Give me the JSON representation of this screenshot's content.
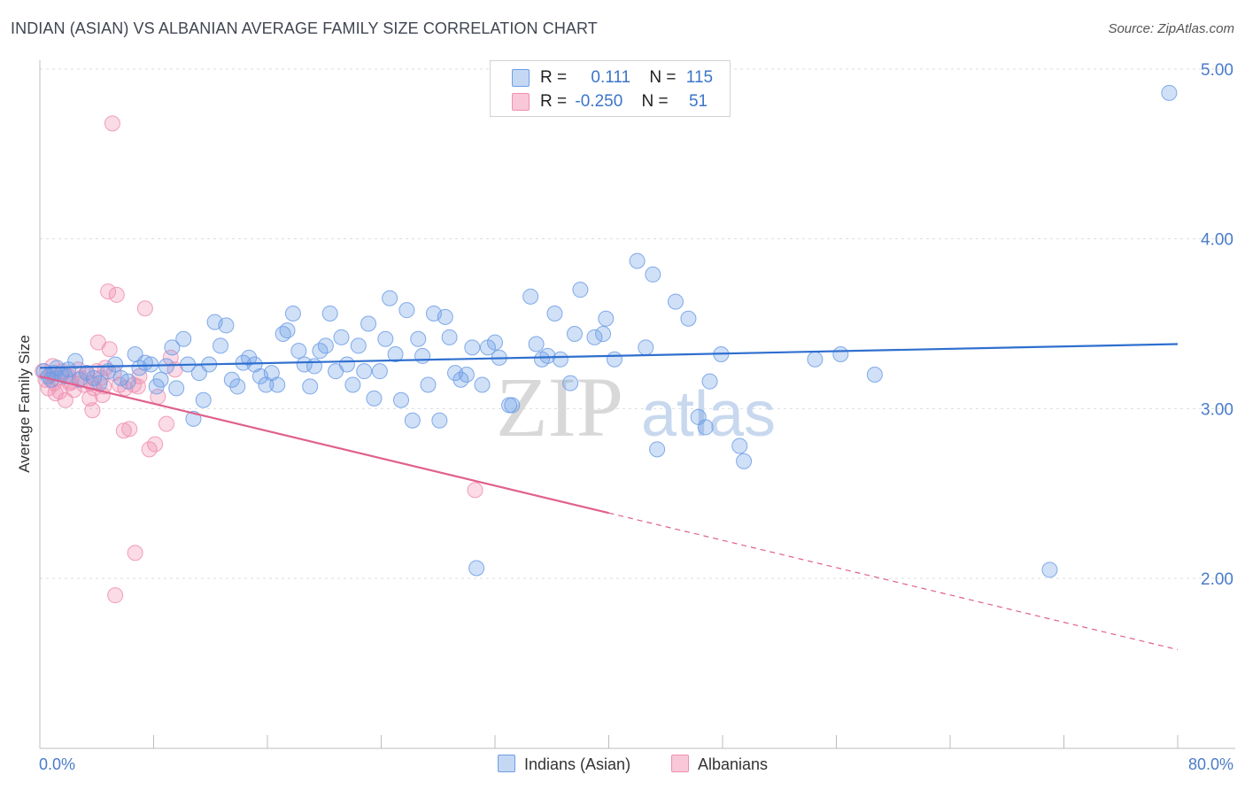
{
  "header": {
    "title": "INDIAN (ASIAN) VS ALBANIAN AVERAGE FAMILY SIZE CORRELATION CHART",
    "source": "Source: ZipAtlas.com"
  },
  "watermark": {
    "zip": "ZIP",
    "atlas": "atlas"
  },
  "legend": {
    "rows": [
      {
        "r_label": "R =",
        "r_value": "0.111",
        "n_label": "N =",
        "n_value": "115"
      },
      {
        "r_label": "R =",
        "r_value": "-0.250",
        "n_label": "N =",
        "n_value": "51"
      }
    ]
  },
  "bottom_legend": {
    "indians": "Indians (Asian)",
    "albanians": "Albanians"
  },
  "colors": {
    "blue": "#6d9ee6",
    "blue_line": "#2f6fcf",
    "pink": "#f08fb0",
    "pink_line": "#e0608c",
    "tick": "#4a7cc9"
  },
  "chart_data": {
    "type": "scatter",
    "title": "INDIAN (ASIAN) VS ALBANIAN AVERAGE FAMILY SIZE CORRELATION CHART",
    "xlabel": "",
    "ylabel": "Average Family Size",
    "x_range": [
      0,
      80
    ],
    "ylim": [
      1.1,
      5.2
    ],
    "x_tick_labels": [
      "0.0%",
      "80.0%"
    ],
    "y_ticks": [
      2.0,
      3.0,
      4.0,
      5.0
    ],
    "y_tick_labels": [
      "2.00",
      "3.00",
      "4.00",
      "5.00"
    ],
    "grid": true,
    "legend_position": "top-center",
    "series": [
      {
        "name": "Indians (Asian)",
        "color": "blue",
        "R": 0.111,
        "N": 115,
        "trend": {
          "x": [
            0,
            80
          ],
          "y": [
            3.24,
            3.38
          ],
          "dash_from": null
        },
        "points": [
          [
            0.3,
            3.22
          ],
          [
            0.6,
            3.19
          ],
          [
            0.8,
            3.17
          ],
          [
            1.0,
            3.21
          ],
          [
            1.2,
            3.24
          ],
          [
            1.5,
            3.2
          ],
          [
            1.8,
            3.19
          ],
          [
            2.0,
            3.23
          ],
          [
            2.5,
            3.28
          ],
          [
            2.8,
            3.17
          ],
          [
            3.3,
            3.21
          ],
          [
            3.8,
            3.18
          ],
          [
            4.2,
            3.15
          ],
          [
            4.8,
            3.22
          ],
          [
            5.3,
            3.26
          ],
          [
            5.7,
            3.18
          ],
          [
            6.2,
            3.16
          ],
          [
            6.7,
            3.32
          ],
          [
            7.0,
            3.24
          ],
          [
            7.4,
            3.27
          ],
          [
            7.8,
            3.26
          ],
          [
            8.2,
            3.13
          ],
          [
            8.5,
            3.17
          ],
          [
            8.9,
            3.25
          ],
          [
            9.3,
            3.36
          ],
          [
            9.6,
            3.12
          ],
          [
            10.1,
            3.41
          ],
          [
            10.4,
            3.26
          ],
          [
            10.8,
            2.94
          ],
          [
            11.2,
            3.21
          ],
          [
            11.5,
            3.05
          ],
          [
            11.9,
            3.26
          ],
          [
            12.3,
            3.51
          ],
          [
            12.7,
            3.37
          ],
          [
            13.1,
            3.49
          ],
          [
            13.5,
            3.17
          ],
          [
            13.9,
            3.13
          ],
          [
            14.3,
            3.27
          ],
          [
            14.7,
            3.3
          ],
          [
            15.1,
            3.26
          ],
          [
            15.5,
            3.19
          ],
          [
            15.9,
            3.14
          ],
          [
            16.3,
            3.21
          ],
          [
            16.7,
            3.14
          ],
          [
            17.1,
            3.44
          ],
          [
            17.4,
            3.46
          ],
          [
            17.8,
            3.56
          ],
          [
            18.2,
            3.34
          ],
          [
            18.6,
            3.26
          ],
          [
            19.0,
            3.13
          ],
          [
            19.3,
            3.25
          ],
          [
            19.7,
            3.34
          ],
          [
            20.1,
            3.37
          ],
          [
            20.4,
            3.56
          ],
          [
            20.8,
            3.22
          ],
          [
            21.2,
            3.42
          ],
          [
            21.6,
            3.26
          ],
          [
            22.0,
            3.14
          ],
          [
            22.4,
            3.37
          ],
          [
            22.8,
            3.22
          ],
          [
            23.1,
            3.5
          ],
          [
            23.5,
            3.06
          ],
          [
            23.9,
            3.22
          ],
          [
            24.3,
            3.41
          ],
          [
            24.6,
            3.65
          ],
          [
            25.0,
            3.32
          ],
          [
            25.4,
            3.05
          ],
          [
            25.8,
            3.58
          ],
          [
            26.2,
            2.93
          ],
          [
            26.6,
            3.41
          ],
          [
            26.9,
            3.31
          ],
          [
            27.3,
            3.14
          ],
          [
            27.7,
            3.56
          ],
          [
            28.1,
            2.93
          ],
          [
            28.5,
            3.54
          ],
          [
            28.8,
            3.42
          ],
          [
            29.2,
            3.21
          ],
          [
            29.6,
            3.17
          ],
          [
            30.0,
            3.2
          ],
          [
            30.4,
            3.36
          ],
          [
            30.7,
            2.06
          ],
          [
            31.1,
            3.14
          ],
          [
            31.5,
            3.36
          ],
          [
            32.0,
            3.39
          ],
          [
            32.3,
            3.3
          ],
          [
            33.0,
            3.02
          ],
          [
            33.2,
            3.02
          ],
          [
            34.5,
            3.66
          ],
          [
            34.9,
            3.38
          ],
          [
            35.3,
            3.29
          ],
          [
            35.7,
            3.31
          ],
          [
            36.2,
            3.56
          ],
          [
            36.6,
            3.29
          ],
          [
            37.3,
            3.15
          ],
          [
            37.6,
            3.44
          ],
          [
            38.0,
            3.7
          ],
          [
            39.0,
            3.42
          ],
          [
            39.6,
            3.44
          ],
          [
            39.8,
            3.53
          ],
          [
            40.4,
            3.29
          ],
          [
            42.0,
            3.87
          ],
          [
            42.6,
            3.36
          ],
          [
            43.1,
            3.79
          ],
          [
            43.4,
            2.76
          ],
          [
            44.7,
            3.63
          ],
          [
            45.6,
            3.53
          ],
          [
            46.3,
            2.95
          ],
          [
            46.8,
            2.89
          ],
          [
            47.1,
            3.16
          ],
          [
            47.9,
            3.32
          ],
          [
            49.2,
            2.78
          ],
          [
            49.5,
            2.69
          ],
          [
            54.5,
            3.29
          ],
          [
            56.3,
            3.32
          ],
          [
            58.7,
            3.2
          ],
          [
            71.0,
            2.05
          ],
          [
            79.4,
            4.86
          ]
        ]
      },
      {
        "name": "Albanians",
        "color": "pink",
        "R": -0.25,
        "N": 51,
        "trend": {
          "x": [
            0,
            80
          ],
          "y": [
            3.19,
            1.58
          ],
          "dash_from": 40
        },
        "points": [
          [
            0.2,
            3.22
          ],
          [
            0.4,
            3.17
          ],
          [
            0.6,
            3.12
          ],
          [
            0.8,
            3.2
          ],
          [
            1.0,
            3.15
          ],
          [
            1.2,
            3.18
          ],
          [
            1.4,
            3.1
          ],
          [
            1.6,
            3.22
          ],
          [
            1.8,
            3.05
          ],
          [
            2.0,
            3.19
          ],
          [
            2.2,
            3.16
          ],
          [
            2.4,
            3.11
          ],
          [
            2.7,
            3.23
          ],
          [
            2.9,
            3.18
          ],
          [
            3.1,
            3.14
          ],
          [
            3.3,
            3.21
          ],
          [
            3.5,
            3.06
          ],
          [
            3.6,
            3.15
          ],
          [
            3.7,
            2.99
          ],
          [
            3.8,
            3.12
          ],
          [
            4.0,
            3.22
          ],
          [
            4.1,
            3.39
          ],
          [
            4.3,
            3.18
          ],
          [
            4.4,
            3.08
          ],
          [
            4.6,
            3.24
          ],
          [
            4.8,
            3.69
          ],
          [
            4.9,
            3.35
          ],
          [
            5.1,
            4.68
          ],
          [
            5.2,
            3.21
          ],
          [
            5.4,
            3.67
          ],
          [
            5.6,
            3.14
          ],
          [
            5.9,
            2.87
          ],
          [
            6.0,
            3.12
          ],
          [
            6.3,
            2.88
          ],
          [
            6.6,
            3.14
          ],
          [
            6.7,
            2.15
          ],
          [
            6.9,
            3.13
          ],
          [
            7.0,
            3.19
          ],
          [
            7.4,
            3.59
          ],
          [
            7.7,
            2.76
          ],
          [
            8.1,
            2.79
          ],
          [
            8.3,
            3.07
          ],
          [
            8.9,
            2.91
          ],
          [
            9.2,
            3.3
          ],
          [
            9.5,
            3.23
          ],
          [
            5.3,
            1.9
          ],
          [
            30.6,
            2.52
          ],
          [
            2.1,
            3.15
          ],
          [
            1.1,
            3.09
          ],
          [
            0.9,
            3.25
          ],
          [
            4.5,
            3.13
          ]
        ]
      }
    ]
  }
}
